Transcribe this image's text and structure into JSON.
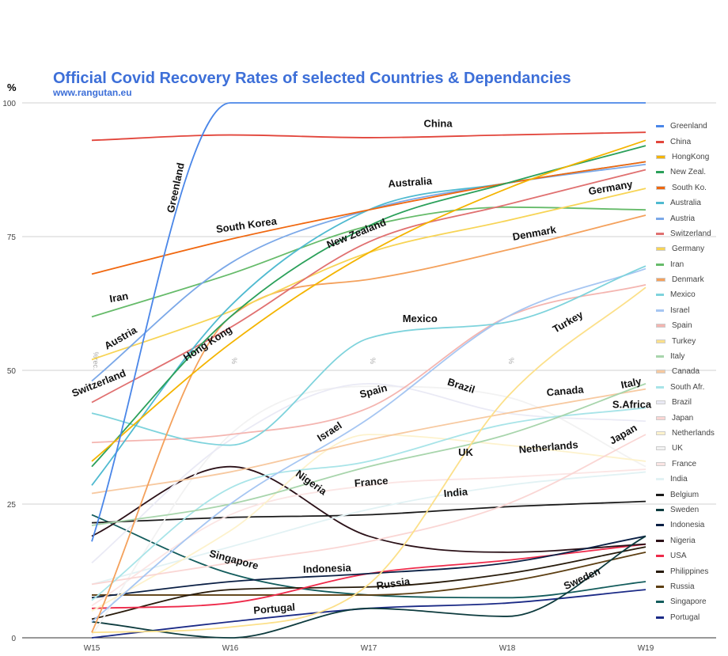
{
  "header": {
    "title": "Official Covid Recovery Rates of selected Countries & Dependancies",
    "subtitle": "www.rangutan.eu",
    "y_unit": "%"
  },
  "chart_data": {
    "type": "line",
    "x": [
      "W15",
      "W16",
      "W17",
      "W18",
      "W19"
    ],
    "ylim": [
      0,
      100
    ],
    "yticks": [
      0,
      25,
      50,
      75,
      100
    ],
    "grid": true,
    "legend_position": "right",
    "faint_axis_marks": [
      "%rec.",
      "%",
      "%",
      "%"
    ],
    "series": [
      {
        "name": "Greenland",
        "color": "#4a86e8",
        "values": [
          18,
          100,
          100,
          100,
          100
        ]
      },
      {
        "name": "China",
        "color": "#e2453b",
        "values": [
          93,
          94,
          93.5,
          94,
          94.5
        ]
      },
      {
        "name": "HongKong",
        "color": "#f4b400",
        "values": [
          33,
          55,
          72,
          84,
          93
        ]
      },
      {
        "name": "New Zeal.",
        "color": "#2ba05a",
        "values": [
          32,
          60,
          77,
          85,
          92
        ]
      },
      {
        "name": "South Ko.",
        "color": "#f0670f",
        "values": [
          68,
          74.5,
          80,
          85,
          89
        ]
      },
      {
        "name": "Australia",
        "color": "#4fbad0",
        "values": [
          28.5,
          62,
          80,
          85,
          89
        ]
      },
      {
        "name": "Austria",
        "color": "#7ba8e8",
        "values": [
          48,
          70,
          80,
          85,
          88.5
        ]
      },
      {
        "name": "Switzerland",
        "color": "#e07070",
        "values": [
          44,
          58,
          74,
          81,
          87.5
        ]
      },
      {
        "name": "Germany",
        "color": "#f7d455",
        "values": [
          52,
          61,
          72,
          78,
          84
        ]
      },
      {
        "name": "Iran",
        "color": "#66bb6a",
        "values": [
          60,
          68,
          77,
          80.5,
          80
        ]
      },
      {
        "name": "Denmark",
        "color": "#f4a15c",
        "values": [
          1,
          60,
          67,
          72.5,
          79
        ]
      },
      {
        "name": "Mexico",
        "color": "#7ed3dc",
        "values": [
          42,
          36,
          56,
          59,
          69.5
        ]
      },
      {
        "name": "Israel",
        "color": "#a6c6f2",
        "values": [
          3,
          25,
          41,
          60,
          69
        ]
      },
      {
        "name": "Spain",
        "color": "#f4b5b0",
        "values": [
          36.5,
          38,
          43,
          60,
          66
        ]
      },
      {
        "name": "Turkey",
        "color": "#fce08a",
        "values": [
          1,
          2,
          10,
          45,
          65.5
        ]
      },
      {
        "name": "Italy",
        "color": "#a8d5ac",
        "values": [
          21,
          25,
          32,
          38,
          47.5
        ]
      },
      {
        "name": "Canada",
        "color": "#f7c9a0",
        "values": [
          27,
          31,
          37,
          42,
          46.5
        ]
      },
      {
        "name": "South Afr.",
        "color": "#a8e4e8",
        "values": [
          7,
          28,
          33,
          40,
          43
        ]
      },
      {
        "name": "Brazil",
        "color": "#eaeaf5",
        "values": [
          14,
          37,
          47.5,
          42,
          40.5
        ]
      },
      {
        "name": "Japan",
        "color": "#fad6d4",
        "values": [
          10,
          14,
          18,
          25,
          38
        ]
      },
      {
        "name": "Netherlands",
        "color": "#fdf2cc",
        "values": [
          5,
          20,
          38,
          36,
          33
        ]
      },
      {
        "name": "UK",
        "color": "#f2f2f2",
        "values": [
          0.5,
          38,
          47,
          45,
          32
        ]
      },
      {
        "name": "France",
        "color": "#fbe5e4",
        "values": [
          6,
          23,
          28.5,
          30,
          31.5
        ]
      },
      {
        "name": "India",
        "color": "#e2f2f4",
        "values": [
          10,
          17,
          24,
          28.5,
          31
        ]
      },
      {
        "name": "Belgium",
        "color": "#1a1a1a",
        "values": [
          21.5,
          22.5,
          23,
          24.5,
          25.5
        ]
      },
      {
        "name": "Sweden",
        "color": "#0d3b3e",
        "values": [
          3,
          0,
          5.5,
          4,
          19
        ]
      },
      {
        "name": "Indonesia",
        "color": "#0a1f44",
        "values": [
          7.5,
          10.5,
          12,
          14,
          19
        ]
      },
      {
        "name": "Nigeria",
        "color": "#2b1118",
        "values": [
          19,
          32,
          19,
          16,
          17.5
        ]
      },
      {
        "name": "USA",
        "color": "#ee2a4a",
        "values": [
          5.5,
          6.5,
          12,
          14.5,
          17.5
        ]
      },
      {
        "name": "Philippines",
        "color": "#271a0a",
        "values": [
          3.5,
          9,
          9.5,
          12,
          17
        ]
      },
      {
        "name": "Russia",
        "color": "#5c3e12",
        "values": [
          8,
          8,
          8,
          10.5,
          16
        ]
      },
      {
        "name": "Singapore",
        "color": "#135c5c",
        "values": [
          23,
          12,
          8,
          7.5,
          10.5
        ]
      },
      {
        "name": "Portugal",
        "color": "#1b2a86",
        "values": [
          0,
          3,
          5.5,
          6.5,
          9
        ]
      }
    ],
    "annotations": [
      {
        "text": "China",
        "x": 2.5,
        "y": 95.5,
        "angle": 0
      },
      {
        "text": "Greenland",
        "x": 0.63,
        "y": 84,
        "angle": -78
      },
      {
        "text": "South Korea",
        "x": 1.12,
        "y": 76.5,
        "angle": -8
      },
      {
        "text": "Australia",
        "x": 2.3,
        "y": 84.5,
        "angle": -4
      },
      {
        "text": "Germany",
        "x": 3.75,
        "y": 83.5,
        "angle": -10
      },
      {
        "text": "New Zealand",
        "x": 1.92,
        "y": 75,
        "angle": -22
      },
      {
        "text": "Denmark",
        "x": 3.2,
        "y": 75,
        "angle": -10
      },
      {
        "text": "Iran",
        "x": 0.2,
        "y": 63,
        "angle": -10
      },
      {
        "text": "Austria",
        "x": 0.22,
        "y": 55.5,
        "angle": -30
      },
      {
        "text": "Hong Kong",
        "x": 0.85,
        "y": 54.5,
        "angle": -33
      },
      {
        "text": "Switzerland",
        "x": 0.06,
        "y": 47,
        "angle": -22
      },
      {
        "text": "Mexico",
        "x": 2.37,
        "y": 59,
        "angle": 0
      },
      {
        "text": "Turkey",
        "x": 3.45,
        "y": 58.5,
        "angle": -30
      },
      {
        "text": "Spain",
        "x": 2.04,
        "y": 45.5,
        "angle": -15
      },
      {
        "text": "Brazil",
        "x": 2.66,
        "y": 46.5,
        "angle": 18
      },
      {
        "text": "Canada",
        "x": 3.42,
        "y": 45.5,
        "angle": -5
      },
      {
        "text": "Italy",
        "x": 3.9,
        "y": 47,
        "angle": -12
      },
      {
        "text": "S.Africa",
        "x": 3.9,
        "y": 43,
        "angle": 0
      },
      {
        "text": "Israel",
        "x": 1.73,
        "y": 38,
        "angle": -33
      },
      {
        "text": "UK",
        "x": 2.7,
        "y": 34,
        "angle": 0
      },
      {
        "text": "Netherlands",
        "x": 3.3,
        "y": 35,
        "angle": -5
      },
      {
        "text": "Japan",
        "x": 3.85,
        "y": 37.5,
        "angle": -30
      },
      {
        "text": "Nigeria",
        "x": 1.57,
        "y": 28.5,
        "angle": 35
      },
      {
        "text": "France",
        "x": 2.02,
        "y": 28.5,
        "angle": -5
      },
      {
        "text": "India",
        "x": 2.63,
        "y": 26.5,
        "angle": -5
      },
      {
        "text": "Singapore",
        "x": 1.02,
        "y": 14,
        "angle": 15
      },
      {
        "text": "Indonesia",
        "x": 1.7,
        "y": 12.3,
        "angle": -2
      },
      {
        "text": "Russia",
        "x": 2.18,
        "y": 9.5,
        "angle": -8
      },
      {
        "text": "Sweden",
        "x": 3.55,
        "y": 10.5,
        "angle": -25
      },
      {
        "text": "Portugal",
        "x": 1.32,
        "y": 4.8,
        "angle": -5
      }
    ]
  }
}
